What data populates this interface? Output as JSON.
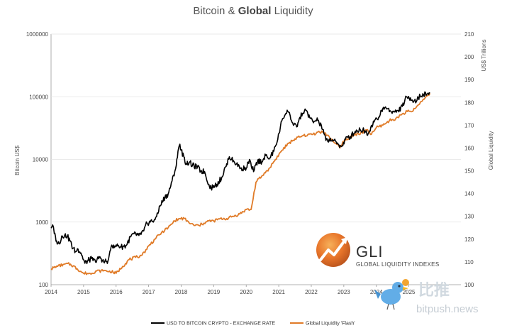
{
  "chart_data": {
    "type": "line",
    "title": "Bitcoin & Global Liquidity",
    "title_regular": "Bitcoin & ",
    "title_bold": "Global",
    "title_end": " Liquidity",
    "x_ticks": [
      "2014",
      "2015",
      "2016",
      "2017",
      "2018",
      "2019",
      "2020",
      "2021",
      "2022",
      "2023",
      "2024",
      "2025"
    ],
    "xlim": [
      2014,
      2026.6
    ],
    "left_axis": {
      "label": "Bitcoin US$",
      "scale": "log",
      "ylim": [
        100,
        1000000
      ],
      "ticks": [
        100,
        1000,
        10000,
        100000,
        1000000
      ],
      "tick_labels": [
        "100",
        "1000",
        "10000",
        "100000",
        "1000000"
      ]
    },
    "right_axis": {
      "label_top": "US$ Trillions",
      "label_mid": "Global Liquidity",
      "scale": "linear",
      "ylim": [
        100,
        210
      ],
      "ticks": [
        100,
        110,
        120,
        130,
        140,
        150,
        160,
        170,
        180,
        190,
        200,
        210
      ],
      "tick_labels": [
        "100",
        "110",
        "120",
        "130",
        "140",
        "150",
        "160",
        "170",
        "180",
        "190",
        "200",
        "210"
      ]
    },
    "series": [
      {
        "name": "USD TO BITCOIN CRYPTO - EXCHANGE RATE",
        "color": "#000000",
        "axis": "left",
        "x": [
          2014.0,
          2014.05,
          2014.1,
          2014.17,
          2014.25,
          2014.33,
          2014.42,
          2014.5,
          2014.58,
          2014.67,
          2014.75,
          2014.83,
          2014.92,
          2015.0,
          2015.04,
          2015.12,
          2015.25,
          2015.37,
          2015.5,
          2015.62,
          2015.75,
          2015.83,
          2015.92,
          2016.0,
          2016.15,
          2016.3,
          2016.45,
          2016.55,
          2016.7,
          2016.85,
          2016.95,
          2017.05,
          2017.2,
          2017.35,
          2017.5,
          2017.6,
          2017.72,
          2017.85,
          2017.92,
          2017.96,
          2018.0,
          2018.08,
          2018.15,
          2018.25,
          2018.35,
          2018.5,
          2018.6,
          2018.72,
          2018.85,
          2018.92,
          2019.0,
          2019.1,
          2019.25,
          2019.4,
          2019.48,
          2019.55,
          2019.7,
          2019.85,
          2020.0,
          2020.1,
          2020.18,
          2020.25,
          2020.35,
          2020.5,
          2020.6,
          2020.72,
          2020.85,
          2020.95,
          2021.05,
          2021.12,
          2021.2,
          2021.28,
          2021.35,
          2021.45,
          2021.55,
          2021.65,
          2021.75,
          2021.85,
          2021.95,
          2022.05,
          2022.2,
          2022.35,
          2022.45,
          2022.55,
          2022.7,
          2022.85,
          2022.95,
          2023.05,
          2023.2,
          2023.35,
          2023.5,
          2023.62,
          2023.75,
          2023.85,
          2023.95,
          2024.05,
          2024.12,
          2024.2,
          2024.3,
          2024.42,
          2024.55,
          2024.67,
          2024.8,
          2024.88,
          2024.95,
          2025.05,
          2025.15,
          2025.25,
          2025.35,
          2025.45,
          2025.55,
          2025.65
        ],
        "y": [
          800,
          900,
          650,
          500,
          450,
          600,
          620,
          590,
          500,
          380,
          340,
          370,
          320,
          250,
          220,
          240,
          260,
          230,
          280,
          230,
          240,
          360,
          430,
          430,
          400,
          420,
          580,
          650,
          610,
          720,
          960,
          1000,
          1100,
          1800,
          2500,
          2800,
          4500,
          8000,
          15000,
          17500,
          14000,
          11000,
          8500,
          9000,
          8000,
          7500,
          6500,
          6400,
          4000,
          3500,
          3800,
          4000,
          5200,
          8500,
          11000,
          10000,
          8500,
          7300,
          7200,
          10000,
          7000,
          6800,
          9500,
          9200,
          11500,
          10500,
          13500,
          19000,
          33000,
          45000,
          52000,
          58000,
          50000,
          35000,
          33000,
          47000,
          55000,
          60000,
          47000,
          40000,
          42000,
          30000,
          20000,
          21000,
          20000,
          17000,
          16500,
          21000,
          23000,
          28000,
          30000,
          29000,
          26000,
          35000,
          42000,
          43000,
          52000,
          65000,
          66000,
          60000,
          57000,
          60000,
          70000,
          90000,
          98000,
          96000,
          85000,
          88000,
          103000,
          108000,
          110000,
          115000
        ]
      },
      {
        "name": "Global Liquidity 'Flash'",
        "color": "#e07b28",
        "axis": "right",
        "x": [
          2014.0,
          2014.2,
          2014.4,
          2014.6,
          2014.8,
          2015.0,
          2015.2,
          2015.4,
          2015.6,
          2015.8,
          2016.0,
          2016.2,
          2016.4,
          2016.6,
          2016.8,
          2017.0,
          2017.2,
          2017.4,
          2017.6,
          2017.8,
          2017.95,
          2018.1,
          2018.25,
          2018.4,
          2018.55,
          2018.7,
          2018.85,
          2019.0,
          2019.2,
          2019.4,
          2019.6,
          2019.8,
          2020.0,
          2020.15,
          2020.3,
          2020.5,
          2020.7,
          2020.9,
          2021.1,
          2021.3,
          2021.5,
          2021.7,
          2021.9,
          2022.05,
          2022.2,
          2022.35,
          2022.55,
          2022.75,
          2022.88,
          2023.0,
          2023.15,
          2023.3,
          2023.5,
          2023.7,
          2023.85,
          2024.0,
          2024.2,
          2024.4,
          2024.6,
          2024.8,
          2024.95,
          2025.1,
          2025.3,
          2025.5,
          2025.65
        ],
        "y": [
          107,
          108,
          109,
          109,
          107,
          105,
          105,
          106,
          106,
          106,
          105,
          108,
          111,
          112,
          113,
          117,
          120,
          123,
          125,
          128,
          129,
          129,
          127,
          126,
          126,
          127,
          128,
          128,
          129,
          129,
          130,
          131,
          133,
          133,
          145,
          148,
          151,
          155,
          159,
          162,
          164,
          165,
          166,
          166,
          167,
          167,
          165,
          162,
          160,
          163,
          164,
          166,
          166,
          168,
          166,
          169,
          170,
          172,
          173,
          175,
          176,
          176,
          179,
          182,
          184
        ]
      }
    ],
    "legend": [
      {
        "label": "USD TO BITCOIN CRYPTO - EXCHANGE RATE",
        "color": "#000000"
      },
      {
        "label": "Global Liquidity 'Flash'",
        "color": "#e07b28"
      }
    ],
    "logo": {
      "big": "GLI",
      "small": "GLOBAL LIQUIDITY INDEXES"
    },
    "watermark": {
      "cn": "比推",
      "en": "bitpush.news"
    }
  }
}
